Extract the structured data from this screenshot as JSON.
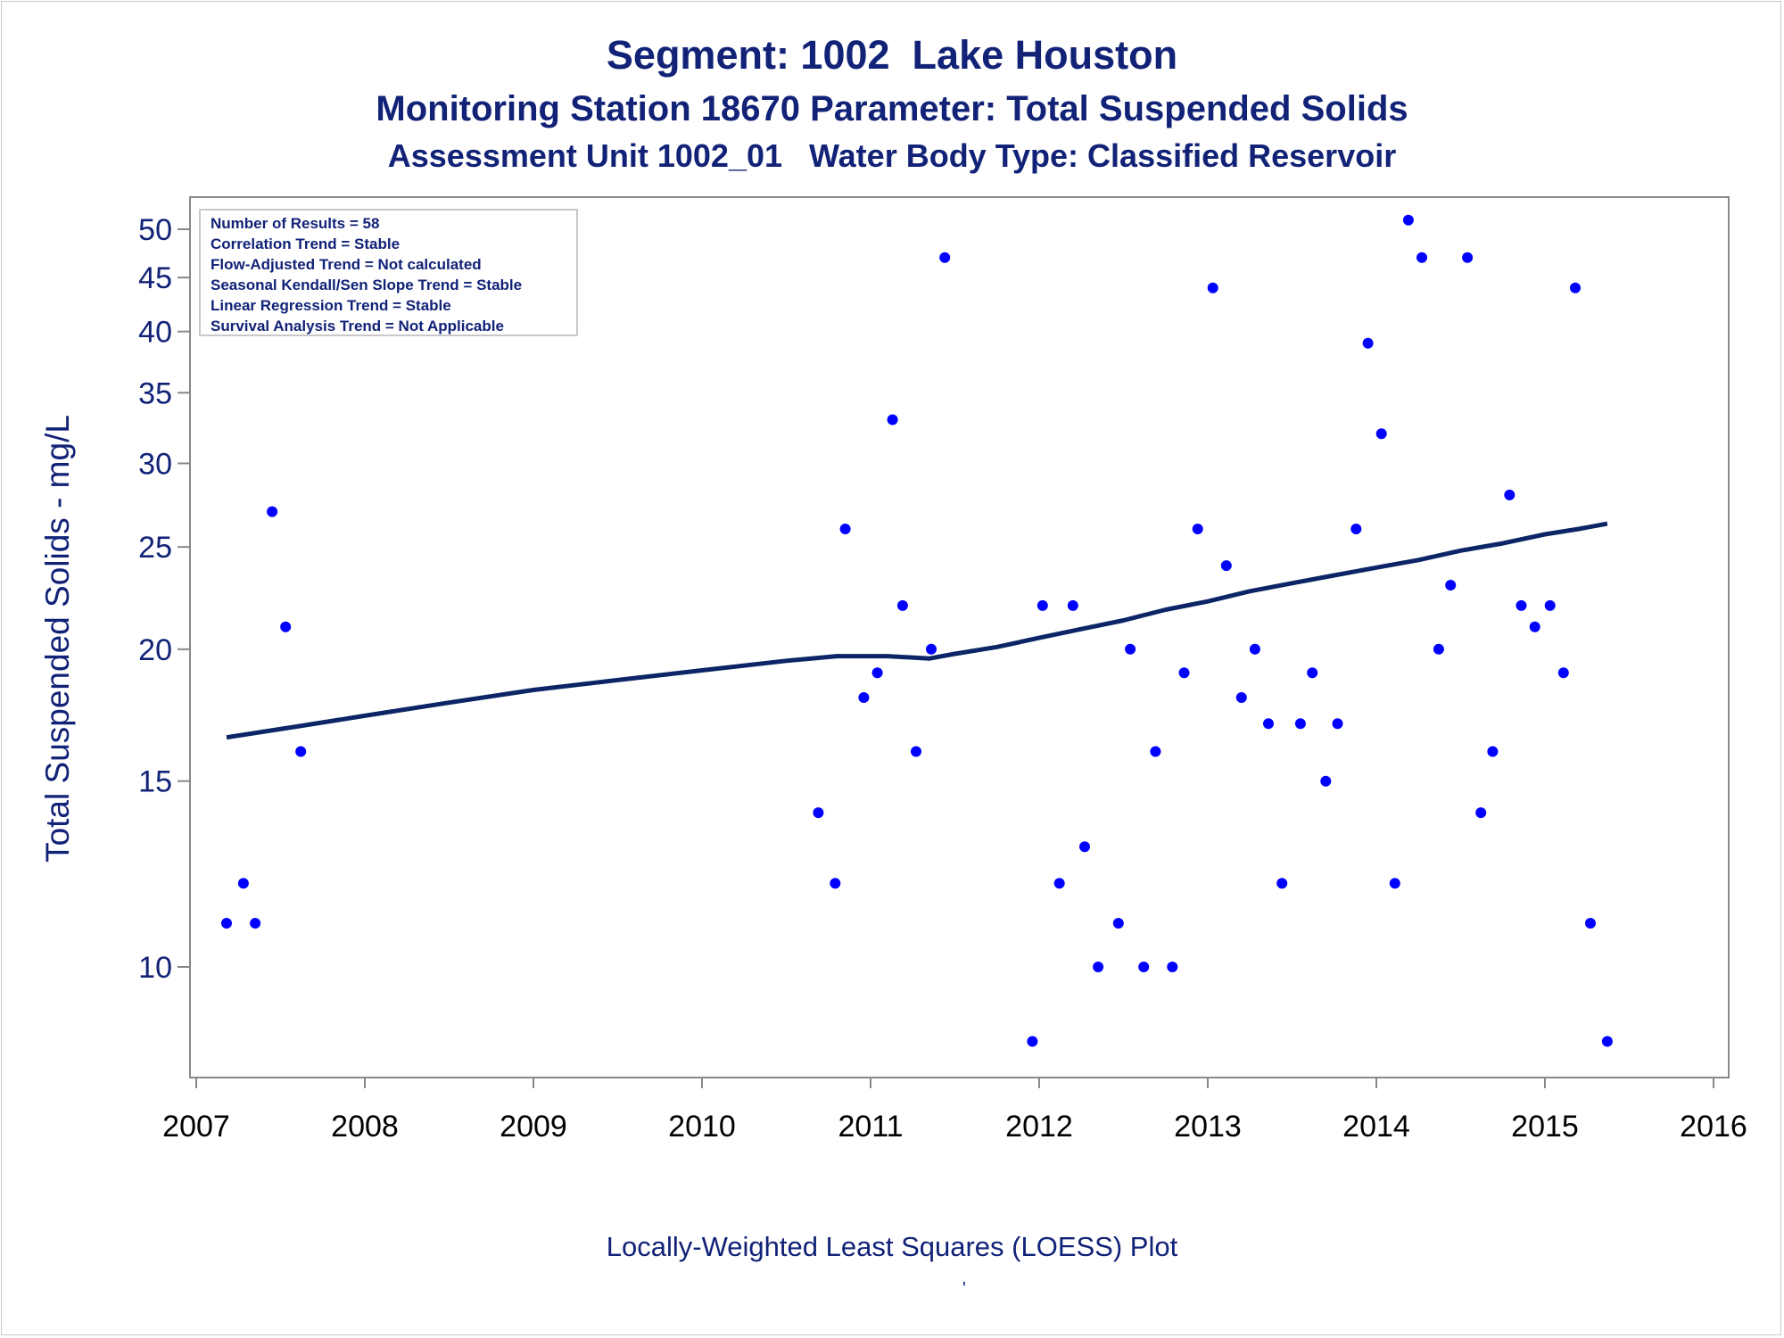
{
  "titles": {
    "line1": "Segment: 1002  Lake Houston",
    "line2": "Monitoring Station 18670 Parameter: Total Suspended Solids",
    "line3": "Assessment Unit 1002_01   Water Body Type: Classified Reservoir"
  },
  "footnote": "Locally-Weighted Least Squares (LOESS) Plot",
  "footnote_mark": "'",
  "colors": {
    "text": "#112277",
    "points": "#0000ff",
    "line": "#0b2566",
    "axis": "#888888"
  },
  "chart_data": {
    "type": "scatter",
    "ylabel": "Total Suspended Solids - mg/L",
    "xlabel": "",
    "y_scale": "log",
    "grid": false,
    "xlim": [
      2007,
      2016
    ],
    "ylim": [
      8.5,
      52
    ],
    "x_ticks": [
      2007,
      2008,
      2009,
      2010,
      2011,
      2012,
      2013,
      2014,
      2015,
      2016
    ],
    "y_ticks": [
      10,
      15,
      20,
      25,
      30,
      35,
      40,
      45,
      50
    ],
    "legend_placement": "top-left",
    "stats_box": [
      "Number of Results = 58",
      "Correlation Trend = Stable",
      "Flow-Adjusted Trend = Not calculated",
      "Seasonal Kendall/Sen Slope Trend = Stable",
      "Linear Regression Trend = Stable",
      "Survival Analysis Trend = Not Applicable"
    ],
    "series": [
      {
        "type": "scatter",
        "points": [
          [
            2007.18,
            11
          ],
          [
            2007.28,
            12
          ],
          [
            2007.35,
            11
          ],
          [
            2007.45,
            27
          ],
          [
            2007.53,
            21
          ],
          [
            2007.62,
            16
          ],
          [
            2010.69,
            14
          ],
          [
            2010.79,
            12
          ],
          [
            2010.85,
            26
          ],
          [
            2010.96,
            18
          ],
          [
            2011.04,
            19
          ],
          [
            2011.13,
            33
          ],
          [
            2011.19,
            22
          ],
          [
            2011.27,
            16
          ],
          [
            2011.36,
            20
          ],
          [
            2011.44,
            47
          ],
          [
            2011.96,
            8.5
          ],
          [
            2012.02,
            22
          ],
          [
            2012.12,
            12
          ],
          [
            2012.2,
            22
          ],
          [
            2012.27,
            13
          ],
          [
            2012.35,
            10
          ],
          [
            2012.47,
            11
          ],
          [
            2012.54,
            20
          ],
          [
            2012.62,
            10
          ],
          [
            2012.69,
            16
          ],
          [
            2012.79,
            10
          ],
          [
            2012.86,
            19
          ],
          [
            2012.94,
            26
          ],
          [
            2013.03,
            44
          ],
          [
            2013.11,
            24
          ],
          [
            2013.2,
            18
          ],
          [
            2013.28,
            20
          ],
          [
            2013.36,
            17
          ],
          [
            2013.44,
            12
          ],
          [
            2013.55,
            17
          ],
          [
            2013.62,
            19
          ],
          [
            2013.7,
            15
          ],
          [
            2013.77,
            17
          ],
          [
            2013.88,
            26
          ],
          [
            2013.95,
            39
          ],
          [
            2014.03,
            32
          ],
          [
            2014.11,
            12
          ],
          [
            2014.19,
            51
          ],
          [
            2014.27,
            47
          ],
          [
            2014.37,
            20
          ],
          [
            2014.44,
            23
          ],
          [
            2014.54,
            47
          ],
          [
            2014.62,
            14
          ],
          [
            2014.69,
            16
          ],
          [
            2014.79,
            28
          ],
          [
            2014.86,
            22
          ],
          [
            2014.94,
            21
          ],
          [
            2015.03,
            22
          ],
          [
            2015.11,
            19
          ],
          [
            2015.18,
            44
          ],
          [
            2015.27,
            11
          ],
          [
            2015.37,
            8.5
          ]
        ]
      },
      {
        "type": "line",
        "points": [
          [
            2007.18,
            16.5
          ],
          [
            2007.6,
            16.9
          ],
          [
            2008.0,
            17.3
          ],
          [
            2008.5,
            17.8
          ],
          [
            2009.0,
            18.3
          ],
          [
            2009.5,
            18.7
          ],
          [
            2010.0,
            19.1
          ],
          [
            2010.5,
            19.5
          ],
          [
            2010.8,
            19.7
          ],
          [
            2011.1,
            19.7
          ],
          [
            2011.35,
            19.6
          ],
          [
            2011.5,
            19.8
          ],
          [
            2011.75,
            20.1
          ],
          [
            2012.0,
            20.5
          ],
          [
            2012.25,
            20.9
          ],
          [
            2012.5,
            21.3
          ],
          [
            2012.75,
            21.8
          ],
          [
            2013.0,
            22.2
          ],
          [
            2013.25,
            22.7
          ],
          [
            2013.5,
            23.1
          ],
          [
            2013.75,
            23.5
          ],
          [
            2014.0,
            23.9
          ],
          [
            2014.25,
            24.3
          ],
          [
            2014.5,
            24.8
          ],
          [
            2014.75,
            25.2
          ],
          [
            2015.0,
            25.7
          ],
          [
            2015.2,
            26.0
          ],
          [
            2015.37,
            26.3
          ]
        ]
      }
    ]
  }
}
